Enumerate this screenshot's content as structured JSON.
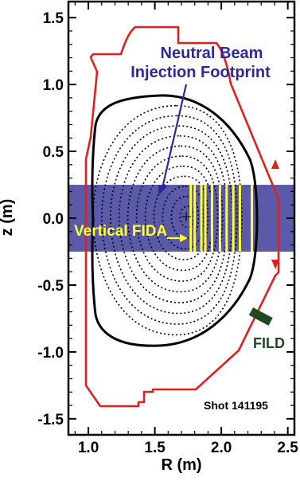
{
  "axes": {
    "xlabel": "R (m)",
    "ylabel": "z (m)",
    "xticks": [
      "1.0",
      "1.5",
      "2.0",
      "2.5"
    ],
    "yticks": [
      "1.5",
      "1.0",
      "0.5",
      "0.0",
      "-0.5",
      "-1.0",
      "-1.5"
    ],
    "xlim": [
      0.85,
      2.55
    ],
    "ylim": [
      -1.62,
      1.62
    ]
  },
  "annotations": {
    "beam_line1": "Neutral Beam",
    "beam_line2": "Injection Footprint",
    "vertical_fida": "Vertical FIDA",
    "fild": "FILD",
    "shot": "Shot 141195"
  },
  "colors": {
    "vessel_wall": "#e02020",
    "beam_band": "#5a5aa8",
    "fida_chords": "#ffff33",
    "fild_probe": "#1f4a1f",
    "annotation_blue": "#2a2a9a"
  },
  "beam_band_z": [
    -0.25,
    0.25
  ],
  "fida_chord_R": [
    1.77,
    1.8,
    1.85,
    1.88,
    1.93,
    1.99,
    2.04,
    2.09,
    2.14,
    2.23
  ]
}
